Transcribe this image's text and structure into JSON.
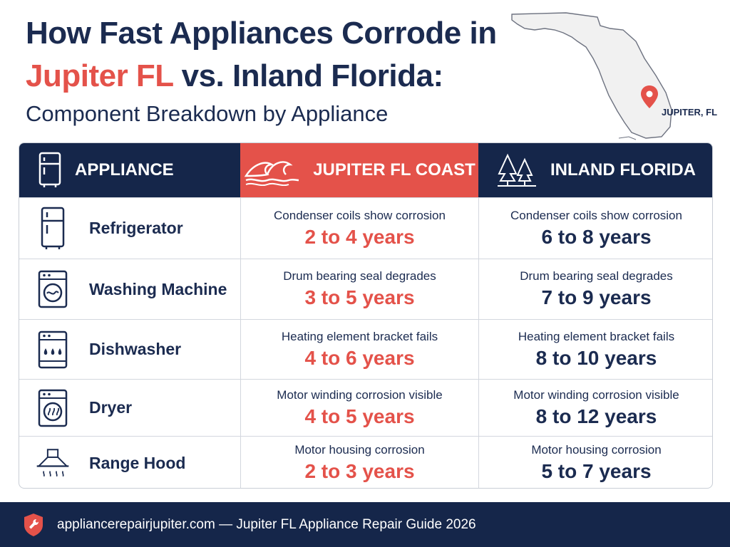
{
  "header": {
    "title_line1": "How Fast Appliances Corrode in",
    "title_accent": "Jupiter FL",
    "title_line2_rest": " vs. Inland Florida:",
    "subtitle": "Component Breakdown by Appliance"
  },
  "map": {
    "label": "JUPITER, FL",
    "pin_icon": "map-pin-icon",
    "colors": {
      "land": "#f1f1f1",
      "outline": "#6d7280",
      "pin": "#e4524a"
    }
  },
  "table": {
    "headers": {
      "appliance": "APPLIANCE",
      "coast": "JUPITER FL COAST",
      "inland": "INLAND FLORIDA"
    },
    "rows": [
      {
        "icon": "refrigerator-icon",
        "name": "Refrigerator",
        "coast_desc": "Condenser coils show corrosion",
        "coast_years": "2 to 4 years",
        "inland_desc": "Condenser coils show corrosion",
        "inland_years": "6 to 8 years"
      },
      {
        "icon": "washing-machine-icon",
        "name": "Washing Machine",
        "coast_desc": "Drum bearing seal degrades",
        "coast_years": "3 to 5 years",
        "inland_desc": "Drum bearing seal degrades",
        "inland_years": "7 to 9 years"
      },
      {
        "icon": "dishwasher-icon",
        "name": "Dishwasher",
        "coast_desc": "Heating element bracket fails",
        "coast_years": "4 to 6 years",
        "inland_desc": "Heating element bracket fails",
        "inland_years": "8 to 10 years"
      },
      {
        "icon": "dryer-icon",
        "name": "Dryer",
        "coast_desc": "Motor winding corrosion visible",
        "coast_years": "4 to 5 years",
        "inland_desc": "Motor winding corrosion visible",
        "inland_years": "8 to 12 years"
      },
      {
        "icon": "range-hood-icon",
        "name": "Range Hood",
        "coast_desc": "Motor housing corrosion",
        "coast_years": "2 to 3 years",
        "inland_desc": "Motor housing corrosion",
        "inland_years": "5 to 7 years"
      }
    ]
  },
  "footer": {
    "text": "appliancerepairjupiter.com — Jupiter FL Appliance Repair Guide 2026",
    "logo_icon": "shield-wrench-icon"
  },
  "colors": {
    "navy": "#15264a",
    "accent": "#e4524a",
    "text_dark": "#1b2b50"
  }
}
